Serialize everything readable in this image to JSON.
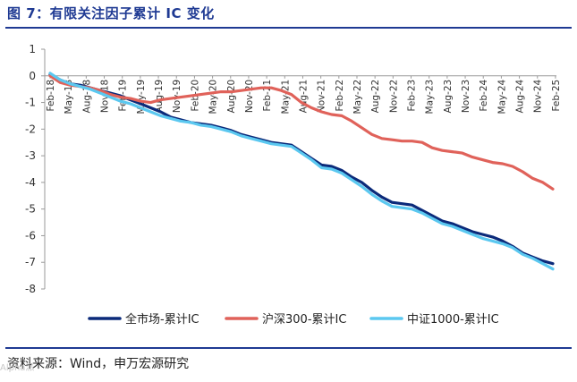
{
  "title": "图 7：有限关注因子累计 IC 变化",
  "source": "资料来源：Wind，申万宏源研究",
  "watermark": "Alpha派",
  "chart_data": {
    "type": "line",
    "title": "图 7：有限关注因子累计 IC 变化",
    "xlabel": "",
    "ylabel": "",
    "ylim": [
      -8,
      1
    ],
    "yticks": [
      1,
      0,
      -1,
      -2,
      -3,
      -4,
      -5,
      -6,
      -7,
      -8
    ],
    "x_start": "2018-02",
    "x_end": "2025-04",
    "x_tick_labels": [
      "Feb-18",
      "May-18",
      "Aug-18",
      "Nov-18",
      "Feb-19",
      "May-19",
      "Aug-19",
      "Nov-19",
      "Feb-20",
      "May-20",
      "Aug-20",
      "Nov-20",
      "Feb-21",
      "May-21",
      "Aug-21",
      "Nov-21",
      "Feb-22",
      "May-22",
      "Aug-22",
      "Nov-22",
      "Feb-23",
      "May-23",
      "Aug-23",
      "Nov-23",
      "Feb-24",
      "May-24",
      "Aug-24",
      "Nov-24",
      "Feb-25"
    ],
    "legend_position": "bottom",
    "series": [
      {
        "name": "全市场-累计IC",
        "color": "#0b2a7a",
        "values": [
          0.05,
          -0.15,
          -0.3,
          -0.35,
          -0.45,
          -0.55,
          -0.65,
          -0.75,
          -0.9,
          -1.05,
          -1.2,
          -1.35,
          -1.55,
          -1.65,
          -1.75,
          -1.8,
          -1.85,
          -1.95,
          -2.05,
          -2.2,
          -2.3,
          -2.4,
          -2.5,
          -2.55,
          -2.6,
          -2.85,
          -3.1,
          -3.35,
          -3.4,
          -3.55,
          -3.8,
          -4.0,
          -4.3,
          -4.55,
          -4.75,
          -4.8,
          -4.85,
          -5.05,
          -5.25,
          -5.45,
          -5.55,
          -5.7,
          -5.85,
          -5.95,
          -6.05,
          -6.2,
          -6.4,
          -6.65,
          -6.8,
          -6.95,
          -7.05
        ]
      },
      {
        "name": "沪深300-累计IC",
        "color": "#e0625a",
        "values": [
          0.0,
          -0.25,
          -0.35,
          -0.4,
          -0.45,
          -0.55,
          -0.7,
          -0.8,
          -0.85,
          -0.95,
          -1.0,
          -0.9,
          -0.85,
          -0.8,
          -0.75,
          -0.7,
          -0.65,
          -0.6,
          -0.6,
          -0.55,
          -0.5,
          -0.45,
          -0.45,
          -0.55,
          -0.7,
          -1.0,
          -1.2,
          -1.35,
          -1.45,
          -1.5,
          -1.7,
          -1.95,
          -2.2,
          -2.35,
          -2.4,
          -2.45,
          -2.45,
          -2.5,
          -2.7,
          -2.8,
          -2.85,
          -2.9,
          -3.05,
          -3.15,
          -3.25,
          -3.3,
          -3.4,
          -3.6,
          -3.85,
          -4.0,
          -4.25
        ]
      },
      {
        "name": "中证1000-累计IC",
        "color": "#5bc8f0",
        "values": [
          0.1,
          -0.15,
          -0.3,
          -0.4,
          -0.5,
          -0.65,
          -0.8,
          -0.95,
          -1.05,
          -1.2,
          -1.35,
          -1.5,
          -1.6,
          -1.7,
          -1.75,
          -1.85,
          -1.9,
          -2.0,
          -2.1,
          -2.25,
          -2.35,
          -2.45,
          -2.55,
          -2.6,
          -2.65,
          -2.9,
          -3.15,
          -3.45,
          -3.5,
          -3.65,
          -3.9,
          -4.15,
          -4.45,
          -4.7,
          -4.9,
          -4.95,
          -5.0,
          -5.15,
          -5.35,
          -5.55,
          -5.65,
          -5.8,
          -5.95,
          -6.1,
          -6.2,
          -6.3,
          -6.45,
          -6.7,
          -6.85,
          -7.05,
          -7.25
        ]
      }
    ]
  }
}
